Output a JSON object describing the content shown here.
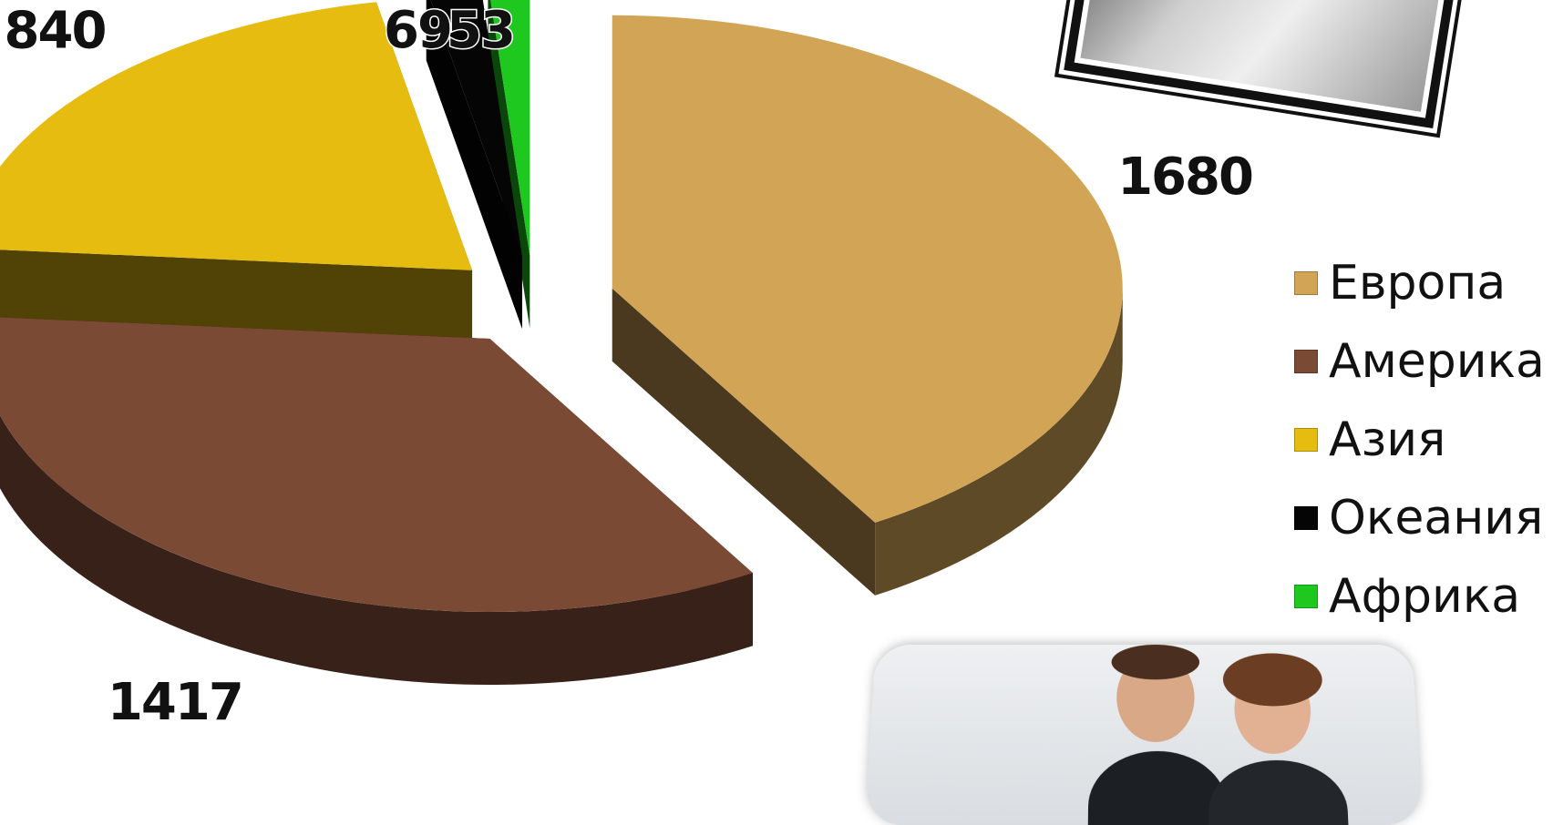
{
  "chart_data": {
    "type": "pie",
    "style": "3d-exploded",
    "categories": [
      "Европа",
      "Америка",
      "Азия",
      "Океания",
      "Африка"
    ],
    "values": [
      1680,
      1417,
      840,
      69,
      53
    ],
    "colors": [
      "#d2a456",
      "#7a4a35",
      "#e6bc10",
      "#050505",
      "#1ec81e"
    ],
    "legend_position": "right",
    "title": ""
  },
  "legend": {
    "items": [
      {
        "label": "Европа",
        "color": "#d2a456"
      },
      {
        "label": "Америка",
        "color": "#7a4a35"
      },
      {
        "label": "Азия",
        "color": "#e6bc10"
      },
      {
        "label": "Океания",
        "color": "#050505"
      },
      {
        "label": "Африка",
        "color": "#1ec81e"
      }
    ]
  },
  "images": {
    "top_photo": "photo-of-people-at-desk",
    "bottom_photo": "photo-of-smiling-businessman-and-businesswoman"
  }
}
